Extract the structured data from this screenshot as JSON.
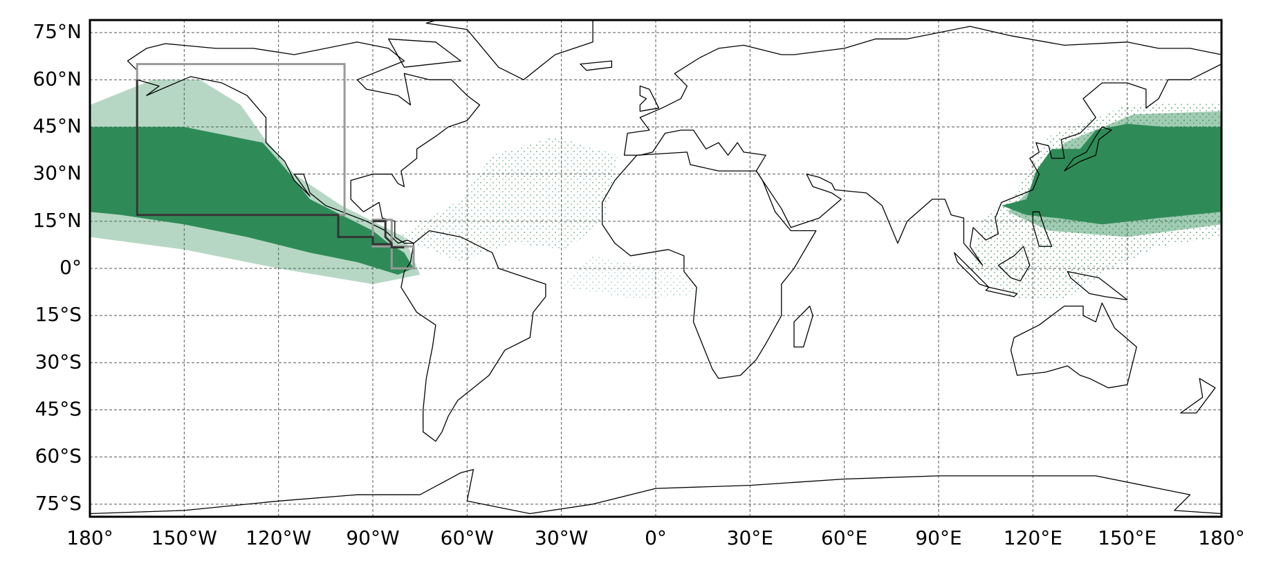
{
  "chart_data": {
    "type": "map",
    "xlim": [
      -180,
      180
    ],
    "ylim": [
      -79,
      79
    ],
    "grid": true,
    "xticks": [
      {
        "value": -180,
        "label": "180°"
      },
      {
        "value": -150,
        "label": "150°W"
      },
      {
        "value": -120,
        "label": "120°W"
      },
      {
        "value": -90,
        "label": "90°W"
      },
      {
        "value": -60,
        "label": "60°W"
      },
      {
        "value": -30,
        "label": "30°W"
      },
      {
        "value": 0,
        "label": "0°"
      },
      {
        "value": 30,
        "label": "30°E"
      },
      {
        "value": 60,
        "label": "60°E"
      },
      {
        "value": 90,
        "label": "90°E"
      },
      {
        "value": 120,
        "label": "120°E"
      },
      {
        "value": 150,
        "label": "150°E"
      },
      {
        "value": 180,
        "label": "180°"
      }
    ],
    "yticks": [
      {
        "value": 75,
        "label": "75°N"
      },
      {
        "value": 60,
        "label": "60°N"
      },
      {
        "value": 45,
        "label": "45°N"
      },
      {
        "value": 30,
        "label": "30°N"
      },
      {
        "value": 15,
        "label": "15°N"
      },
      {
        "value": 0,
        "label": "0°"
      },
      {
        "value": -15,
        "label": "15°S"
      },
      {
        "value": -30,
        "label": "30°S"
      },
      {
        "value": -45,
        "label": "45°S"
      },
      {
        "value": -60,
        "label": "60°S"
      },
      {
        "value": -75,
        "label": "75°S"
      }
    ],
    "color": "#2e8b57"
  }
}
